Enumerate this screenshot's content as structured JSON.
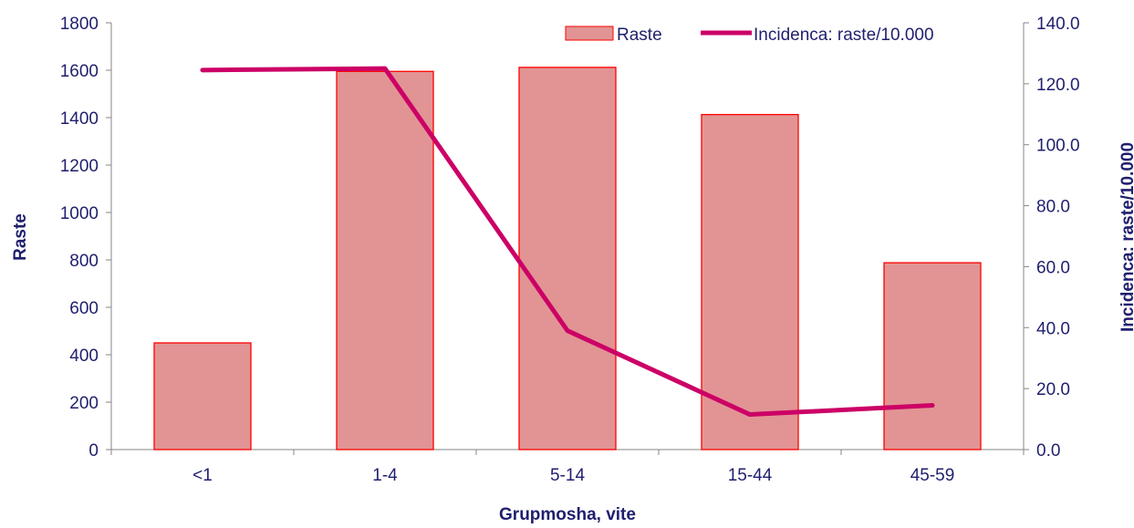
{
  "chart_data": {
    "type": "bar",
    "categories": [
      "<1",
      "1-4",
      "5-14",
      "15-44",
      "45-59"
    ],
    "xlabel": "Grupmosha, vite",
    "ylabel": "Raste",
    "y2label": "Incidenca: raste/10.000",
    "ylim": [
      0,
      1800
    ],
    "y2lim": [
      0,
      140
    ],
    "yticks": [
      "0",
      "200",
      "400",
      "600",
      "800",
      "1000",
      "1200",
      "1400",
      "1600",
      "1800"
    ],
    "y2ticks": [
      "0.0",
      "20.0",
      "40.0",
      "60.0",
      "80.0",
      "100.0",
      "120.0",
      "140.0"
    ],
    "series": [
      {
        "name": "Raste",
        "type": "bar",
        "axis": "left",
        "values": [
          450,
          1595,
          1612,
          1413,
          788
        ]
      },
      {
        "name": "Incidenca: raste/10.000",
        "type": "line",
        "axis": "right",
        "values": [
          124.5,
          125.0,
          39.0,
          11.5,
          14.5
        ]
      }
    ],
    "legend_position": "top-right",
    "grid": false,
    "colors": {
      "bar_fill": "#e29494",
      "bar_stroke": "#ff0000",
      "line": "#cc0066",
      "text": "#1f1f6e",
      "axis": "#868686"
    }
  }
}
